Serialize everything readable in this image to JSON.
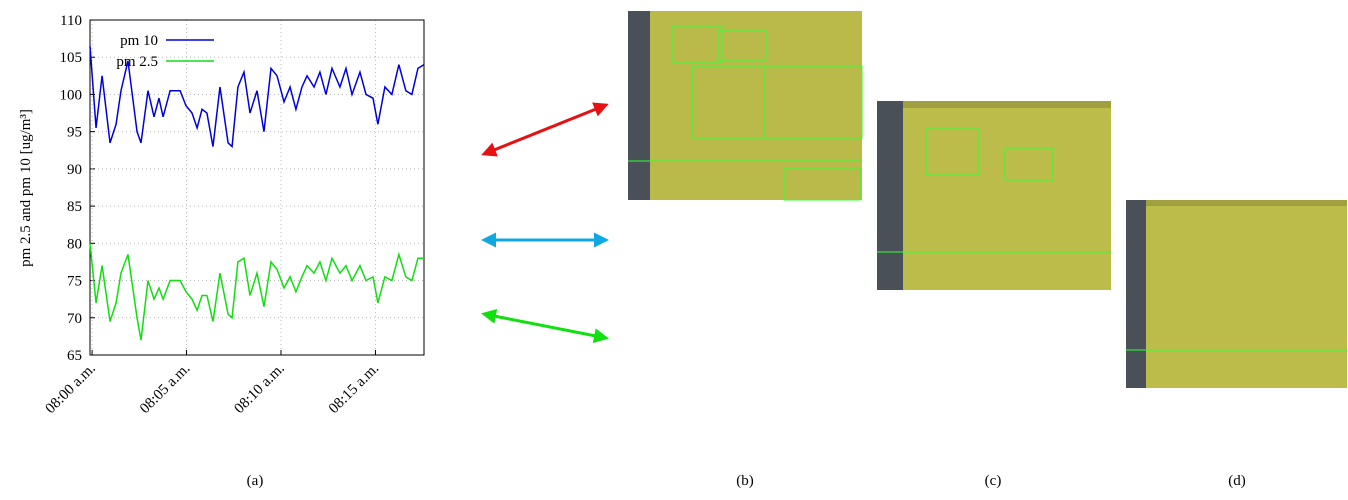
{
  "chart_data": {
    "type": "line",
    "ylabel": "pm 2.5 and pm 10 [ug/m³]",
    "x": [
      -0.11,
      0.21,
      0.53,
      0.95,
      1.27,
      1.53,
      1.9,
      2.38,
      2.59,
      2.96,
      3.28,
      3.54,
      3.76,
      4.13,
      4.66,
      4.97,
      5.29,
      5.56,
      5.82,
      6.08,
      6.4,
      6.77,
      7.2,
      7.41,
      7.72,
      8.04,
      8.36,
      8.73,
      9.1,
      9.47,
      9.79,
      10.16,
      10.48,
      10.79,
      11.11,
      11.38,
      11.75,
      12.06,
      12.38,
      12.7,
      13.12,
      13.44,
      13.76,
      14.18,
      14.5,
      14.87,
      15.13,
      15.5,
      15.87,
      16.24,
      16.61,
      16.93,
      17.25,
      17.57
    ],
    "series": [
      {
        "name": "pm 10",
        "color": "#0000dd",
        "values": [
          106.5,
          95.5,
          102.5,
          93.5,
          96,
          100.5,
          104.5,
          95,
          93.5,
          100.5,
          97,
          99.5,
          97,
          100.5,
          100.5,
          98.5,
          97.5,
          95.5,
          98,
          97.5,
          93,
          101,
          93.5,
          93,
          101,
          103,
          97.5,
          100.5,
          95,
          103.5,
          102.5,
          99,
          101,
          98,
          101,
          102.5,
          101,
          103,
          100,
          103.5,
          101,
          103.5,
          100,
          103,
          100,
          99.5,
          96,
          101,
          100,
          104,
          100.5,
          100,
          103.5,
          104
        ]
      },
      {
        "name": "pm 2.5",
        "color": "#11dd11",
        "values": [
          80,
          72,
          77,
          69.5,
          72,
          76,
          78.5,
          70,
          67,
          75,
          72.5,
          74,
          72.5,
          75,
          75,
          73.5,
          72.5,
          71,
          73,
          73,
          69.5,
          76,
          70.5,
          70,
          77.5,
          78,
          73,
          76,
          71.5,
          77.5,
          76.5,
          74,
          75.5,
          73.5,
          75.5,
          77,
          76,
          77.5,
          75,
          78,
          76,
          77,
          75,
          77,
          75,
          75.5,
          72,
          75.5,
          75,
          78.5,
          75.5,
          75,
          78,
          78
        ]
      }
    ],
    "xlim": [
      -0.11,
      17.57
    ],
    "xticks": [
      {
        "value": 0,
        "label": "08:00 a.m."
      },
      {
        "value": 5,
        "label": "08:05 a.m."
      },
      {
        "value": 10,
        "label": "08:10 a.m."
      },
      {
        "value": 15,
        "label": "08:15 a.m."
      }
    ],
    "ylim": [
      65,
      110
    ],
    "yticks": [
      65,
      70,
      75,
      80,
      85,
      90,
      95,
      100,
      105,
      110
    ],
    "grid": true,
    "legend": "upper left"
  },
  "captions": [
    "(a)",
    "(b)",
    "(c)",
    "(d)"
  ]
}
